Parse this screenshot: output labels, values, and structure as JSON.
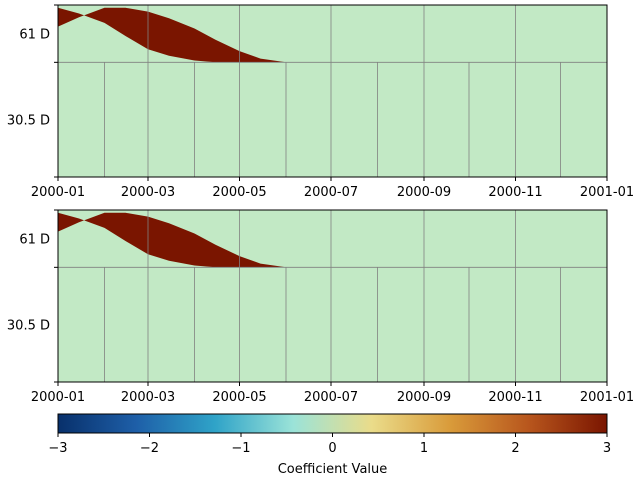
{
  "chart_data": [
    {
      "type": "heatmap",
      "x_ticks": [
        "2000-01",
        "2000-03",
        "2000-05",
        "2000-07",
        "2000-09",
        "2000-11",
        "2001-01"
      ],
      "y_ticks": [
        "61 D",
        "30.5 D"
      ],
      "xlim": [
        "2000-01-01",
        "2001-01-01"
      ],
      "grid": true,
      "cell_value": 3,
      "background_value": 0.5,
      "band_upper_edge": [
        [
          "2000-01-01",
          80.0
        ],
        [
          "2000-01-15",
          85.0
        ],
        [
          "2000-02-01",
          90.0
        ],
        [
          "2000-02-15",
          90.0
        ],
        [
          "2000-03-01",
          88.0
        ],
        [
          "2000-03-15",
          84.5
        ],
        [
          "2000-04-01",
          79.0
        ],
        [
          "2000-04-15",
          73.0
        ],
        [
          "2000-05-01",
          67.0
        ],
        [
          "2000-05-15",
          63.0
        ],
        [
          "2000-06-01",
          61.0
        ]
      ],
      "band_lower_edge": [
        [
          "2000-01-01",
          90.0
        ],
        [
          "2000-01-15",
          87.0
        ],
        [
          "2000-02-01",
          82.0
        ],
        [
          "2000-02-15",
          75.0
        ],
        [
          "2000-03-01",
          68.0
        ],
        [
          "2000-03-15",
          64.5
        ],
        [
          "2000-04-01",
          62.0
        ],
        [
          "2000-04-15",
          61.0
        ],
        [
          "2000-05-01",
          61.0
        ],
        [
          "2000-05-15",
          61.0
        ],
        [
          "2000-06-01",
          61.0
        ]
      ]
    },
    {
      "type": "heatmap",
      "x_ticks": [
        "2000-01",
        "2000-03",
        "2000-05",
        "2000-07",
        "2000-09",
        "2000-11",
        "2001-01"
      ],
      "y_ticks": [
        "61 D",
        "30.5 D"
      ],
      "xlim": [
        "2000-01-01",
        "2001-01-01"
      ],
      "grid": true,
      "cell_value": 3,
      "background_value": 0.5,
      "band_upper_edge": [
        [
          "2000-01-01",
          80.0
        ],
        [
          "2000-01-15",
          85.0
        ],
        [
          "2000-02-01",
          90.0
        ],
        [
          "2000-02-15",
          90.0
        ],
        [
          "2000-03-01",
          88.0
        ],
        [
          "2000-03-15",
          84.5
        ],
        [
          "2000-04-01",
          79.0
        ],
        [
          "2000-04-15",
          73.0
        ],
        [
          "2000-05-01",
          67.0
        ],
        [
          "2000-05-15",
          63.0
        ],
        [
          "2000-06-01",
          61.0
        ]
      ],
      "band_lower_edge": [
        [
          "2000-01-01",
          90.0
        ],
        [
          "2000-01-15",
          87.0
        ],
        [
          "2000-02-01",
          82.0
        ],
        [
          "2000-02-15",
          75.0
        ],
        [
          "2000-03-01",
          68.0
        ],
        [
          "2000-03-15",
          64.5
        ],
        [
          "2000-04-01",
          62.0
        ],
        [
          "2000-04-15",
          61.0
        ],
        [
          "2000-05-01",
          61.0
        ],
        [
          "2000-05-15",
          61.0
        ],
        [
          "2000-06-01",
          61.0
        ]
      ]
    }
  ],
  "colorbar": {
    "label": "Coefficient Value",
    "ticks": [
      "−3",
      "−2",
      "−1",
      "0",
      "1",
      "2",
      "3"
    ],
    "range": [
      -3,
      3
    ],
    "colormap": [
      "#08306b",
      "#1e5fa8",
      "#2fa3c8",
      "#9be3d8",
      "#eadc8a",
      "#d99b3a",
      "#b8561d",
      "#7a1500"
    ]
  },
  "colors": {
    "background_cell": "#c2e9c5",
    "band": "#7a1500",
    "grid": "#808080"
  }
}
